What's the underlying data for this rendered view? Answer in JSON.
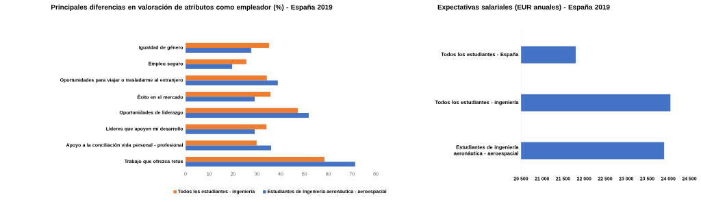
{
  "chart_data": [
    {
      "type": "bar",
      "orientation": "horizontal",
      "title": "Principales diferencias en valoración de atributos como empleador (%) - España 2019",
      "categories": [
        "Igualdad de género",
        "Empleo seguro",
        "Oportunidades para viajar o trasladarme al extranjero",
        "Éxito en el mercado",
        "Oportunidades de liderazgo",
        "Líderes que apoyen mi desarrollo",
        "Apoyo a la conciliación vida personal - profesional",
        "Trabajo que ofrezca retos"
      ],
      "series": [
        {
          "name": "Todos los estudiantes - ingeniería",
          "color": "#ed7d31",
          "values": [
            35.1,
            25.6,
            34.2,
            35.7,
            47.2,
            34.0,
            29.9,
            58.4
          ]
        },
        {
          "name": "Estudiantes de ingeniería aeronáutica - aeroespacial",
          "color": "#4472c4",
          "values": [
            27.6,
            19.6,
            38.8,
            29.1,
            51.8,
            29.1,
            36.0,
            71.3
          ]
        }
      ],
      "xlim": [
        0,
        80
      ],
      "xticks": [
        0,
        10,
        20,
        30,
        40,
        50,
        60,
        70,
        80
      ],
      "legend": "bottom"
    },
    {
      "type": "bar",
      "orientation": "horizontal",
      "title": "Expectativas salariales (EUR anuales) - España 2019",
      "categories": [
        "Todos los estudiantes - España",
        "Todos los estudiantes - ingeniería",
        "Estudiantes de ingeniería aeronáutica - aeroespacial"
      ],
      "values": [
        21800,
        24050,
        23900
      ],
      "color": "#4472c4",
      "xlim": [
        20500,
        24500
      ],
      "xticks": [
        {
          "value": 20500,
          "label": "20 500"
        },
        {
          "value": 21000,
          "label": "21 000"
        },
        {
          "value": 21500,
          "label": "21 500"
        },
        {
          "value": 22000,
          "label": "22 000"
        },
        {
          "value": 22500,
          "label": "22 500"
        },
        {
          "value": 23000,
          "label": "23 000"
        },
        {
          "value": 23500,
          "label": "23 500"
        },
        {
          "value": 24000,
          "label": "24 000"
        },
        {
          "value": 24500,
          "label": "24 500"
        }
      ]
    }
  ]
}
